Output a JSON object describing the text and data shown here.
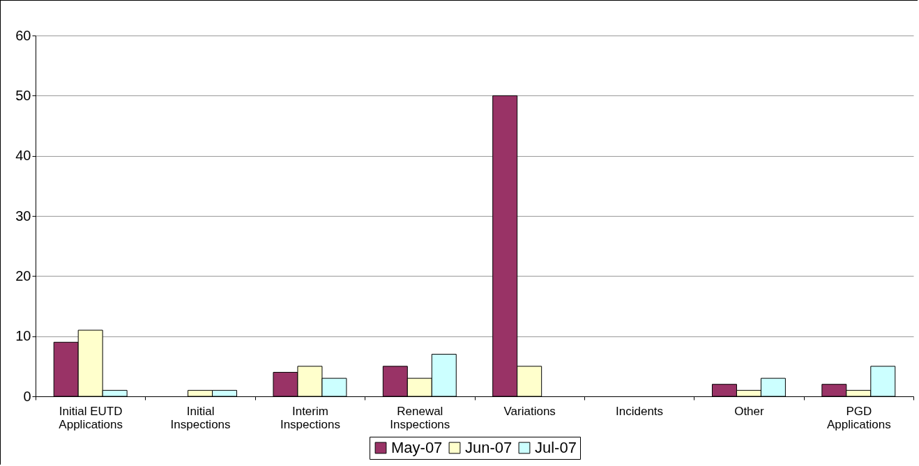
{
  "chart_data": {
    "type": "bar",
    "categories": [
      "Initial EUTD Applications",
      "Initial Inspections",
      "Interim Inspections",
      "Renewal Inspections",
      "Variations",
      "Incidents",
      "Other",
      "PGD Applications"
    ],
    "series": [
      {
        "name": "May-07",
        "color": "#993366",
        "values": [
          9,
          0,
          4,
          5,
          50,
          0,
          2,
          2
        ]
      },
      {
        "name": "Jun-07",
        "color": "#ffffcc",
        "values": [
          11,
          1,
          5,
          3,
          5,
          0,
          1,
          1
        ]
      },
      {
        "name": "Jul-07",
        "color": "#ccffff",
        "values": [
          1,
          1,
          3,
          7,
          0,
          0,
          3,
          5
        ]
      }
    ],
    "ylim": [
      0,
      60
    ],
    "yticks": [
      0,
      10,
      20,
      30,
      40,
      50,
      60
    ],
    "grid": "y",
    "legend": "bottom"
  }
}
